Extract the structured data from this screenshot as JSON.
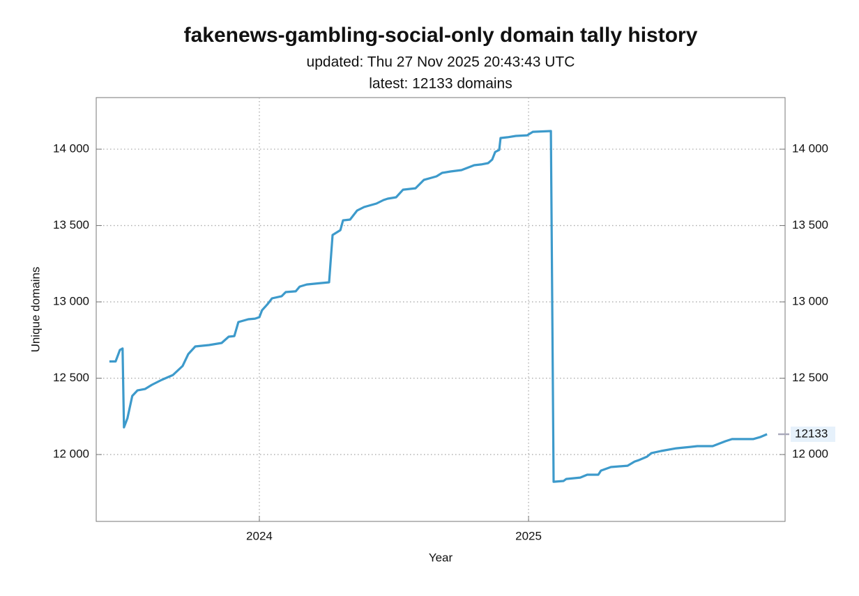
{
  "chart_data": {
    "type": "line",
    "title": "fakenews-gambling-social-only domain tally history",
    "subtitle": "updated: Thu 27 Nov 2025 20:43:43 UTC",
    "subtitle2": "latest: 12133 domains",
    "x_label": "Year",
    "y_label": "Unique domains",
    "color": "#3d9acb",
    "grid": true,
    "xlim": [
      2023.394,
      2025.953
    ],
    "xticks": [
      2024,
      2025
    ],
    "ylim": [
      11562,
      14338
    ],
    "yticks": [
      {
        "value": 12000,
        "label": "12 000"
      },
      {
        "value": 12500,
        "label": "12 500"
      },
      {
        "value": 13000,
        "label": "13 000"
      },
      {
        "value": 13500,
        "label": "13 500"
      },
      {
        "value": 14000,
        "label": "14 000"
      }
    ],
    "x": [
      2023.443,
      2023.466,
      2023.482,
      2023.492,
      2023.497,
      2023.51,
      2023.528,
      2023.547,
      2023.575,
      2023.601,
      2023.637,
      2023.679,
      2023.715,
      2023.736,
      2023.762,
      2023.813,
      2023.86,
      2023.886,
      2023.907,
      2023.922,
      2023.959,
      2023.984,
      2024.0,
      2024.01,
      2024.031,
      2024.047,
      2024.083,
      2024.098,
      2024.135,
      2024.15,
      2024.176,
      2024.228,
      2024.259,
      2024.272,
      2024.301,
      2024.311,
      2024.337,
      2024.363,
      2024.389,
      2024.435,
      2024.461,
      2024.477,
      2024.508,
      2024.534,
      2024.58,
      2024.611,
      2024.658,
      2024.679,
      2024.71,
      2024.751,
      2024.777,
      2024.798,
      2024.824,
      2024.85,
      2024.865,
      2024.876,
      2024.891,
      2024.896,
      2024.922,
      2024.953,
      2024.995,
      2025.016,
      2025.083,
      2025.093,
      2025.13,
      2025.14,
      2025.192,
      2025.218,
      2025.259,
      2025.269,
      2025.306,
      2025.368,
      2025.394,
      2025.409,
      2025.44,
      2025.456,
      2025.492,
      2025.549,
      2025.601,
      2025.627,
      2025.684,
      2025.731,
      2025.756,
      2025.834,
      2025.86,
      2025.886
    ],
    "values": [
      12610,
      12610,
      12685,
      12695,
      12178,
      12238,
      12384,
      12420,
      12429,
      12457,
      12489,
      12521,
      12580,
      12658,
      12708,
      12717,
      12731,
      12772,
      12776,
      12868,
      12886,
      12890,
      12900,
      12945,
      12986,
      13023,
      13037,
      13064,
      13069,
      13100,
      13114,
      13123,
      13128,
      13438,
      13470,
      13534,
      13539,
      13598,
      13621,
      13644,
      13667,
      13676,
      13685,
      13735,
      13744,
      13799,
      13822,
      13845,
      13854,
      13863,
      13881,
      13895,
      13900,
      13909,
      13932,
      13982,
      13995,
      14073,
      14078,
      14087,
      14091,
      14114,
      14119,
      11822,
      11827,
      11840,
      11849,
      11868,
      11868,
      11895,
      11918,
      11927,
      11954,
      11963,
      11986,
      12009,
      12023,
      12041,
      12050,
      12055,
      12055,
      12087,
      12101,
      12101,
      12114,
      12133
    ]
  }
}
